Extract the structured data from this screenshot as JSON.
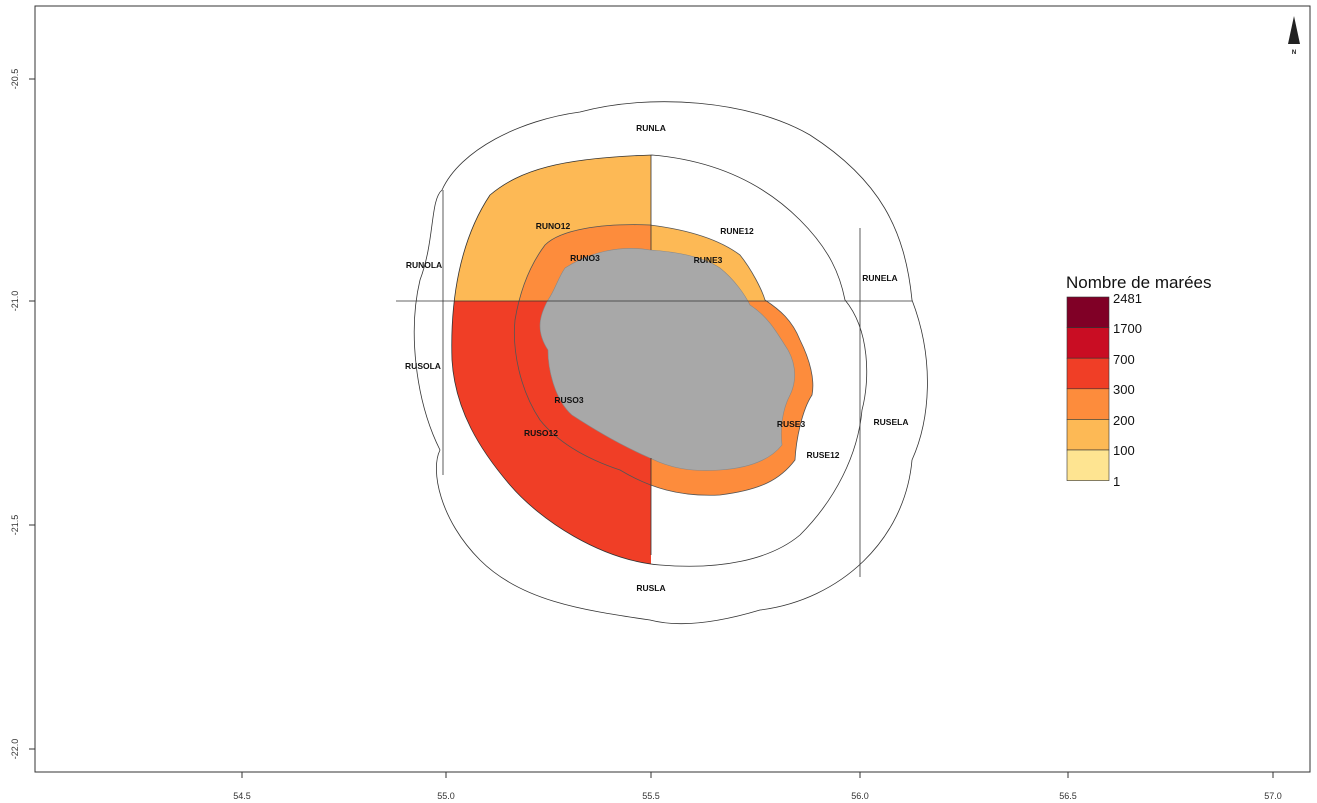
{
  "map": {
    "x_ticks": [
      "54.5",
      "55.0",
      "55.5",
      "56.0",
      "56.5",
      "57.0"
    ],
    "y_ticks": [
      "-20.5",
      "-21.0",
      "-21.5",
      "-22.0"
    ],
    "north_label": "N",
    "island_color": "#a8a8a8",
    "zones": [
      {
        "id": "RUNLA",
        "label": "RUNLA",
        "fill": "none"
      },
      {
        "id": "RUNOLA",
        "label": "RUNOLA",
        "fill": "none"
      },
      {
        "id": "RUNELA",
        "label": "RUNELA",
        "fill": "none"
      },
      {
        "id": "RUSOLA",
        "label": "RUSOLA",
        "fill": "none"
      },
      {
        "id": "RUSELA",
        "label": "RUSELA",
        "fill": "none"
      },
      {
        "id": "RUSLA",
        "label": "RUSLA",
        "fill": "none"
      },
      {
        "id": "RUNO12",
        "label": "RUNO12",
        "fill": "#fdb955"
      },
      {
        "id": "RUNE12",
        "label": "RUNE12",
        "fill": "none"
      },
      {
        "id": "RUSO12",
        "label": "RUSO12",
        "fill": "#f03e26"
      },
      {
        "id": "RUSE12",
        "label": "RUSE12",
        "fill": "none"
      },
      {
        "id": "RUNO3",
        "label": "RUNO3",
        "fill": "#fd8c3c"
      },
      {
        "id": "RUNE3",
        "label": "RUNE3",
        "fill": "#fdb955"
      },
      {
        "id": "RUSO3",
        "label": "RUSO3",
        "fill": "#f03e26"
      },
      {
        "id": "RUSE3",
        "label": "RUSE3",
        "fill": "#fd8c3c"
      }
    ]
  },
  "legend": {
    "title": "Nombre de marées",
    "breaks": [
      "2481",
      "1700",
      "700",
      "300",
      "200",
      "100",
      "1"
    ],
    "colors": [
      "#800026",
      "#c90d23",
      "#f03e26",
      "#fd8c3c",
      "#fdb955",
      "#fee491"
    ]
  }
}
